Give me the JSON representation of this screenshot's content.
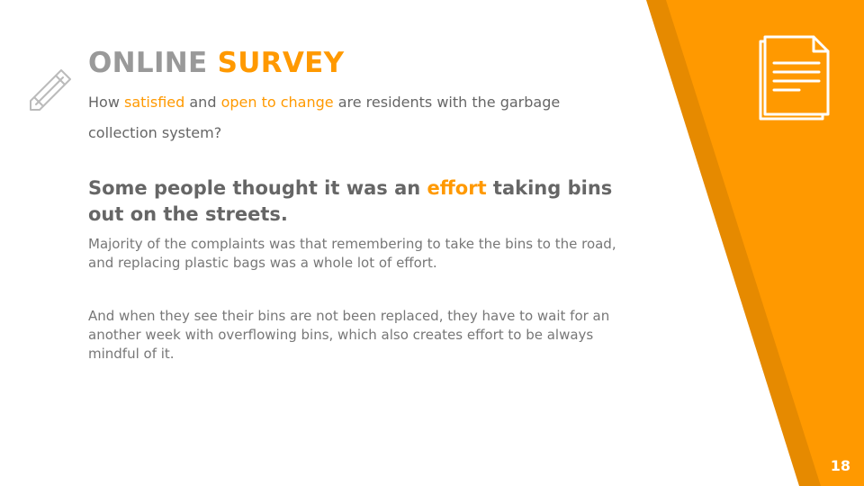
{
  "slide": {
    "title_part1": "ONLINE ",
    "title_part2": "SURVEY",
    "subtitle": {
      "t1": "How ",
      "h1": "satisfied",
      "t2": " and ",
      "h2": "open to change",
      "t3": " are residents with the garbage collection system?"
    },
    "heading": {
      "t1": "Some people thought it was an ",
      "h1": "effort",
      "t2": " taking bins out on the streets."
    },
    "paragraph1": "Majority of the complaints was that remembering to take the bins to the road, and replacing plastic bags was a whole lot of effort.",
    "paragraph2": "And when they see their bins are not been replaced, they have to wait for an another week with overflowing bins, which also creates effort to be always mindful of it.",
    "page_number": "18"
  },
  "icons": {
    "left": "pencil-icon",
    "right": "document-icon"
  },
  "colors": {
    "accent": "#ff9900",
    "accent_dark": "#e68a00",
    "text": "#666666",
    "muted": "#999999"
  }
}
